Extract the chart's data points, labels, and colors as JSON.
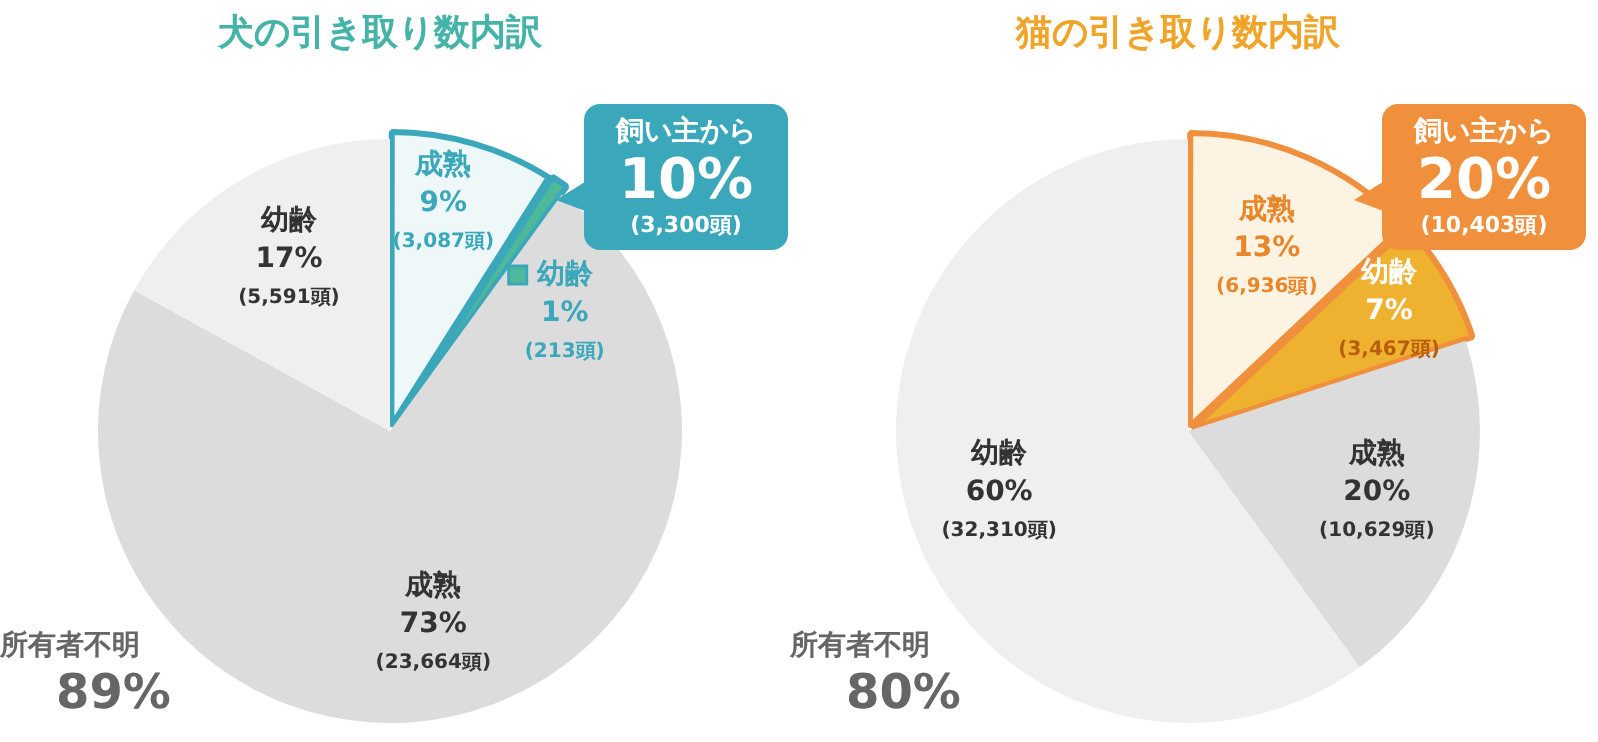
{
  "chart_data": [
    {
      "type": "pie",
      "title": "犬の引き取り数内訳",
      "categories": [
        "成熟",
        "幼齢",
        "成熟",
        "幼齢"
      ],
      "values": [
        9,
        1,
        73,
        17
      ],
      "colors": [
        "#eef8f8",
        "#4db89a",
        "#dcdcdc",
        "#efefef"
      ],
      "value_labels": [
        "9%\n(3,087頭)",
        "1%\n(213頭)",
        "73%\n(23,664頭)",
        "17%\n(5,591頭)"
      ],
      "annotations": [
        "飼い主から\n10%\n(3,300頭)",
        "所有者不明\n89%"
      ]
    },
    {
      "type": "pie",
      "title": "猫の引き取り数内訳",
      "categories": [
        "成熟",
        "幼齢",
        "成熟",
        "幼齢"
      ],
      "values": [
        13,
        7,
        20,
        60
      ],
      "colors": [
        "#fdf3e2",
        "#efb130",
        "#dcdcdc",
        "#efefef"
      ],
      "value_labels": [
        "13%\n(6,936頭)",
        "7%\n(3,467頭)",
        "20%\n(10,629頭)",
        "60%\n(32,310頭)"
      ],
      "annotations": [
        "飼い主から\n20%\n(10,403頭)",
        "所有者不明\n80%"
      ]
    }
  ]
}
